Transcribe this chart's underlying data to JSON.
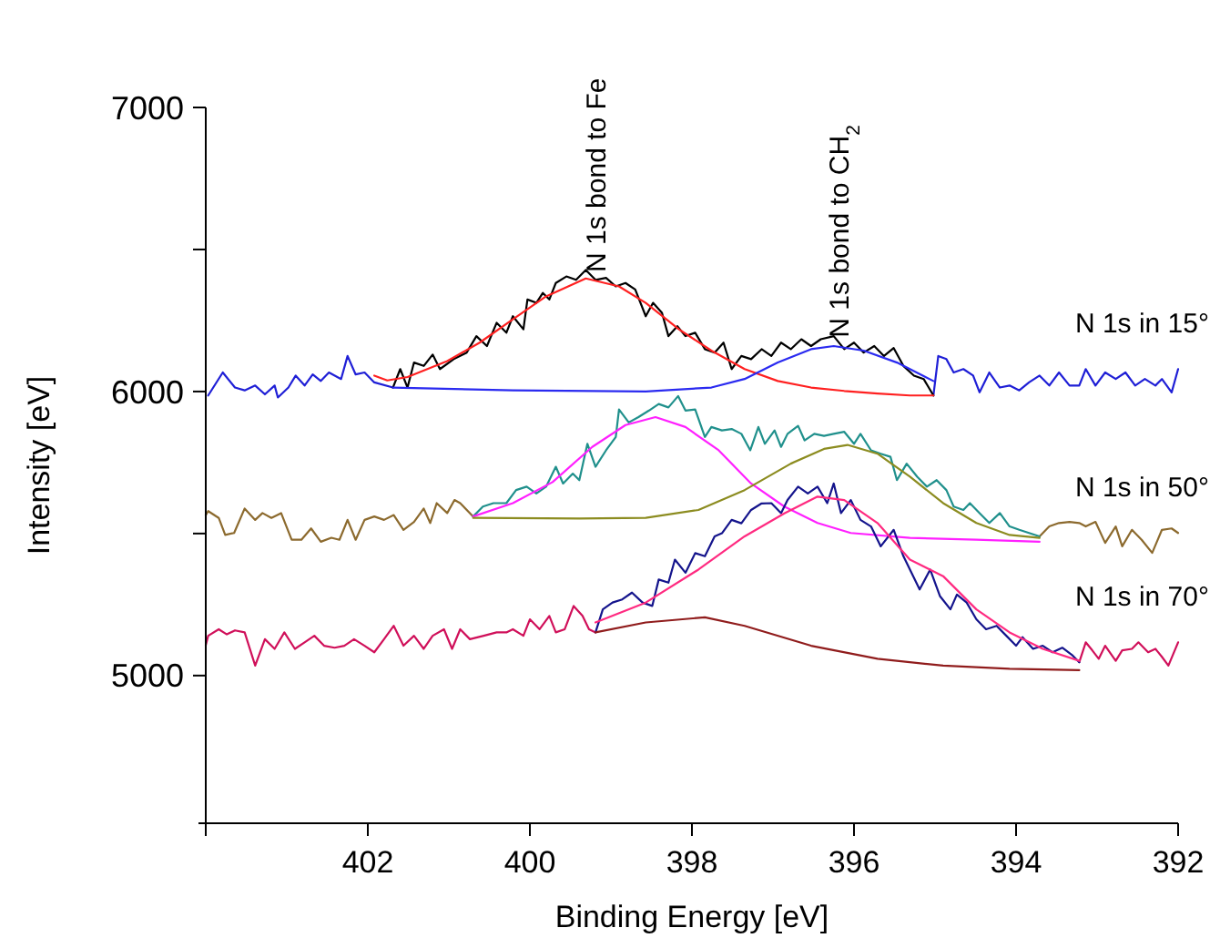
{
  "chart_data": {
    "type": "line",
    "xlabel": "Binding Energy [eV]",
    "ylabel": "Intensity [eV]",
    "xlim": [
      404,
      392
    ],
    "ylim": [
      4480,
      7000
    ],
    "xticks": [
      {
        "value": 404,
        "label": null
      },
      402,
      400,
      398,
      396,
      394,
      392
    ],
    "yticks": [
      5000,
      {
        "value": 5500,
        "label": null
      },
      6000,
      {
        "value": 6500,
        "label": null
      },
      7000
    ],
    "annotations": [
      {
        "text": "N 1s bond to Fe",
        "x": 399.2,
        "y": 6420
      },
      {
        "text": "N 1s bond to CH$_{2}$",
        "x": 396.2,
        "y": 6190
      }
    ],
    "series": [
      {
        "name": "N 1s in 15°",
        "color": "#1f1fd6",
        "x": [
          403.97,
          403.79,
          403.64,
          403.52,
          403.39,
          403.27,
          403.15,
          403.11,
          402.98,
          402.89,
          402.78,
          402.68,
          402.58,
          402.48,
          402.33,
          402.25,
          402.15,
          402.04,
          401.92,
          401.69,
          398.5,
          395.02,
          394.96,
          394.86,
          394.77,
          394.65,
          394.53,
          394.45,
          394.33,
          394.2,
          394.08,
          393.96,
          393.84,
          393.71,
          393.59,
          393.47,
          393.34,
          393.22,
          393.14,
          393.02,
          392.9,
          392.77,
          392.65,
          392.53,
          392.41,
          392.28,
          392.2,
          392.08,
          392.0
        ],
        "values": [
          5986,
          6067,
          6014,
          6004,
          6021,
          5990,
          6021,
          5979,
          6014,
          6056,
          6021,
          6060,
          6037,
          6067,
          6044,
          6125,
          6060,
          6067,
          6032,
          6014,
          null,
          5986,
          6125,
          6114,
          6067,
          6079,
          6056,
          5997,
          6067,
          6014,
          6021,
          6004,
          6032,
          6056,
          6021,
          6067,
          6021,
          6021,
          6079,
          6021,
          6067,
          6044,
          6067,
          6021,
          6044,
          6021,
          6044,
          5997,
          6079
        ]
      },
      {
        "color": "#000000",
        "x": [
          401.69,
          401.6,
          401.51,
          401.43,
          401.31,
          401.2,
          401.11,
          400.94,
          400.78,
          400.66,
          400.53,
          400.41,
          400.29,
          400.21,
          400.08,
          400.03,
          399.92,
          399.84,
          399.76,
          399.68,
          399.55,
          399.43,
          399.31,
          399.19,
          399.06,
          398.94,
          398.82,
          398.7,
          398.57,
          398.48,
          398.37,
          398.29,
          398.18,
          398.08,
          397.96,
          397.84,
          397.72,
          397.61,
          397.51,
          397.39,
          397.27,
          397.14,
          397.02,
          396.9,
          396.78,
          396.65,
          396.53,
          396.41,
          396.25,
          396.12,
          396.0,
          395.88,
          395.75,
          395.63,
          395.51,
          395.39,
          395.26,
          395.14,
          395.02
        ],
        "values": [
          6014,
          6079,
          6014,
          6102,
          6090,
          6130,
          6079,
          6114,
          6137,
          6195,
          6160,
          6242,
          6207,
          6265,
          6219,
          6324,
          6312,
          6347,
          6324,
          6382,
          6405,
          6393,
          6428,
          6393,
          6400,
          6370,
          6382,
          6359,
          6265,
          6312,
          6277,
          6195,
          6230,
          6195,
          6207,
          6149,
          6137,
          6172,
          6079,
          6125,
          6114,
          6149,
          6125,
          6172,
          6149,
          6184,
          6160,
          6184,
          6195,
          6149,
          6172,
          6137,
          6160,
          6125,
          6153,
          6090,
          6056,
          6044,
          5986
        ]
      },
      {
        "color": "#ff2020",
        "x": [
          401.92,
          401.76,
          401.51,
          401.02,
          400.62,
          400.21,
          399.8,
          399.31,
          398.9,
          398.57,
          398.16,
          397.76,
          397.35,
          396.94,
          396.53,
          396.12,
          395.71,
          395.31,
          395.02
        ],
        "values": [
          6056,
          6039,
          6051,
          6107,
          6172,
          6254,
          6335,
          6398,
          6370,
          6312,
          6219,
          6144,
          6079,
          6037,
          6014,
          6002,
          5993,
          5986,
          5986
        ]
      },
      {
        "color": "#2a2af0",
        "x": [
          401.69,
          400.21,
          398.57,
          397.76,
          397.35,
          396.94,
          396.53,
          396.25,
          395.88,
          395.47,
          395.02
        ],
        "values": [
          6014,
          6004,
          6000,
          6014,
          6044,
          6102,
          6149,
          6160,
          6144,
          6102,
          6037
        ]
      },
      {
        "name": "N 1s in 50°",
        "color": "#8c6a2e",
        "x": [
          404.0,
          403.97,
          403.84,
          403.76,
          403.65,
          403.52,
          403.39,
          403.3,
          403.19,
          403.07,
          402.94,
          402.82,
          402.7,
          402.58,
          402.45,
          402.35,
          402.25,
          402.15,
          402.04,
          401.92,
          401.8,
          401.68,
          401.56,
          401.43,
          401.31,
          401.23,
          401.15,
          401.02,
          400.93,
          400.86,
          400.7,
          398.5,
          393.71,
          393.59,
          393.47,
          393.34,
          393.22,
          393.14,
          393.02,
          392.9,
          392.77,
          392.69,
          392.57,
          392.45,
          392.32,
          392.2,
          392.08,
          392.0
        ],
        "values": [
          5565,
          5579,
          5555,
          5495,
          5502,
          5588,
          5548,
          5572,
          5555,
          5572,
          5478,
          5478,
          5518,
          5471,
          5485,
          5478,
          5548,
          5478,
          5548,
          5560,
          5548,
          5565,
          5513,
          5541,
          5588,
          5537,
          5607,
          5572,
          5618,
          5607,
          5560,
          null,
          5490,
          5525,
          5537,
          5541,
          5537,
          5525,
          5541,
          5467,
          5525,
          5455,
          5513,
          5478,
          5432,
          5513,
          5518,
          5502
        ]
      },
      {
        "color": "#20908c",
        "x": [
          400.7,
          400.58,
          400.45,
          400.29,
          400.17,
          400.04,
          399.92,
          399.8,
          399.68,
          399.59,
          399.47,
          399.39,
          399.29,
          399.19,
          399.06,
          398.94,
          398.9,
          398.78,
          398.66,
          398.53,
          398.41,
          398.29,
          398.17,
          398.08,
          397.96,
          397.84,
          397.76,
          397.63,
          397.51,
          397.39,
          397.28,
          397.18,
          397.1,
          396.98,
          396.9,
          396.82,
          396.69,
          396.61,
          396.49,
          396.37,
          396.25,
          396.12,
          396.0,
          395.92,
          395.79,
          395.67,
          395.55,
          395.47,
          395.35,
          395.22,
          395.1,
          394.98,
          394.86,
          394.77,
          394.65,
          394.57,
          394.45,
          394.33,
          394.2,
          394.08,
          393.96,
          393.84,
          393.71
        ],
        "values": [
          5560,
          5595,
          5607,
          5607,
          5653,
          5665,
          5641,
          5665,
          5735,
          5676,
          5711,
          5688,
          5816,
          5735,
          5793,
          5840,
          5937,
          5891,
          5910,
          5933,
          5956,
          5944,
          5984,
          5933,
          5937,
          5840,
          5875,
          5863,
          5868,
          5851,
          5793,
          5875,
          5816,
          5863,
          5805,
          5851,
          5879,
          5828,
          5851,
          5844,
          5851,
          5858,
          5816,
          5851,
          5793,
          5781,
          5770,
          5688,
          5746,
          5700,
          5665,
          5688,
          5653,
          5595,
          5583,
          5607,
          5572,
          5537,
          5572,
          5525,
          5513,
          5502,
          5490
        ]
      },
      {
        "color": "#ff20ff",
        "x": [
          400.7,
          400.21,
          399.72,
          399.23,
          398.82,
          398.45,
          398.08,
          397.67,
          397.27,
          396.86,
          396.45,
          396.04,
          395.31,
          394.49,
          393.71
        ],
        "values": [
          5560,
          5607,
          5681,
          5805,
          5882,
          5910,
          5875,
          5793,
          5676,
          5595,
          5537,
          5502,
          5485,
          5478,
          5471
        ]
      },
      {
        "color": "#8c8c20",
        "x": [
          400.7,
          399.39,
          398.57,
          397.92,
          397.35,
          396.78,
          396.37,
          396.08,
          395.71,
          395.31,
          394.9,
          394.49,
          394.08,
          393.71
        ],
        "values": [
          5555,
          5553,
          5555,
          5583,
          5653,
          5746,
          5798,
          5812,
          5781,
          5700,
          5607,
          5537,
          5495,
          5485
        ]
      },
      {
        "name": "N 1s in 70°",
        "color": "#d0105a",
        "x": [
          404.0,
          403.97,
          403.84,
          403.74,
          403.64,
          403.52,
          403.39,
          403.27,
          403.15,
          403.03,
          402.9,
          402.78,
          402.66,
          402.54,
          402.41,
          402.29,
          402.17,
          402.04,
          401.92,
          401.8,
          401.68,
          401.56,
          401.43,
          401.31,
          401.2,
          401.06,
          400.96,
          400.86,
          400.74,
          400.57,
          400.41,
          400.29,
          400.21,
          400.08,
          400.0,
          399.88,
          399.76,
          399.68,
          399.57,
          399.46,
          399.35,
          399.27,
          399.19,
          396.5,
          393.22,
          393.14,
          393.06,
          392.98,
          392.9,
          392.77,
          392.69,
          392.57,
          392.49,
          392.37,
          392.28,
          392.2,
          392.12,
          392.0
        ],
        "values": [
          5107,
          5140,
          5163,
          5145,
          5159,
          5152,
          5035,
          5128,
          5094,
          5152,
          5094,
          5117,
          5140,
          5105,
          5098,
          5105,
          5128,
          5105,
          5082,
          5128,
          5175,
          5105,
          5140,
          5094,
          5140,
          5163,
          5094,
          5163,
          5128,
          5140,
          5152,
          5152,
          5163,
          5140,
          5198,
          5163,
          5210,
          5152,
          5163,
          5245,
          5210,
          5163,
          5152,
          null,
          5047,
          5117,
          5089,
          5059,
          5105,
          5052,
          5089,
          5094,
          5117,
          5082,
          5094,
          5066,
          5035,
          5117
        ]
      },
      {
        "color": "#14148c",
        "x": [
          399.19,
          399.1,
          398.98,
          398.86,
          398.74,
          398.61,
          398.49,
          398.41,
          398.29,
          398.21,
          398.08,
          397.96,
          397.84,
          397.72,
          397.63,
          397.51,
          397.39,
          397.27,
          397.14,
          397.02,
          396.9,
          396.82,
          396.69,
          396.57,
          396.45,
          396.33,
          396.25,
          396.16,
          396.04,
          395.92,
          395.79,
          395.67,
          395.51,
          395.39,
          395.19,
          395.06,
          394.94,
          394.81,
          394.73,
          394.61,
          394.49,
          394.37,
          394.24,
          394.12,
          394.0,
          393.92,
          393.79,
          393.67,
          393.55,
          393.43,
          393.3,
          393.22
        ],
        "values": [
          5152,
          5233,
          5257,
          5268,
          5292,
          5257,
          5245,
          5338,
          5327,
          5408,
          5362,
          5431,
          5420,
          5490,
          5501,
          5548,
          5536,
          5583,
          5606,
          5607,
          5572,
          5618,
          5665,
          5641,
          5665,
          5607,
          5676,
          5572,
          5618,
          5548,
          5525,
          5455,
          5513,
          5420,
          5303,
          5373,
          5280,
          5233,
          5285,
          5257,
          5198,
          5163,
          5175,
          5140,
          5105,
          5135,
          5094,
          5105,
          5082,
          5098,
          5070,
          5047
        ]
      },
      {
        "color": "#ff2a80",
        "x": [
          399.19,
          398.57,
          397.92,
          397.35,
          396.86,
          396.45,
          396.12,
          395.71,
          395.31,
          394.9,
          394.49,
          394.08,
          393.67,
          393.22
        ],
        "values": [
          5187,
          5257,
          5373,
          5490,
          5571,
          5630,
          5618,
          5537,
          5408,
          5350,
          5233,
          5152,
          5094,
          5052
        ]
      },
      {
        "color": "#901c1c",
        "x": [
          399.19,
          398.57,
          397.84,
          397.35,
          396.53,
          395.71,
          394.9,
          394.08,
          393.22
        ],
        "values": [
          5152,
          5187,
          5205,
          5175,
          5105,
          5059,
          5035,
          5024,
          5019
        ]
      }
    ]
  }
}
